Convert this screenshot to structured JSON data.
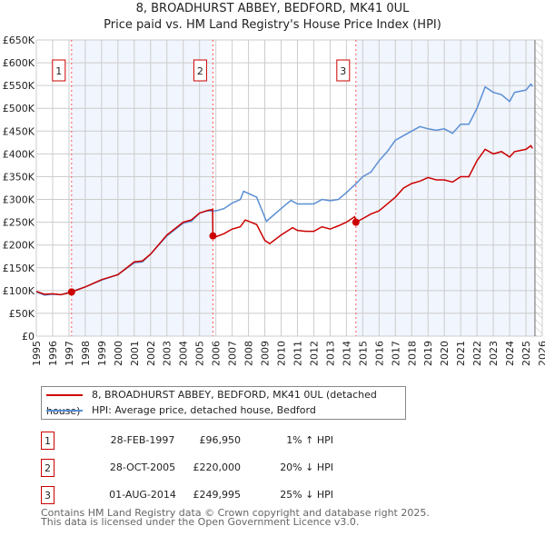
{
  "title": "8, BROADHURST ABBEY, BEDFORD, MK41 0UL",
  "subtitle": "Price paid vs. HM Land Registry's House Price Index (HPI)",
  "chart_data": {
    "type": "line",
    "title": "8, BROADHURST ABBEY, BEDFORD, MK41 0UL",
    "xlim": [
      1995,
      2026
    ],
    "ylim": [
      0,
      650000
    ],
    "xticks": [
      "1995",
      "1996",
      "1997",
      "1998",
      "1999",
      "2000",
      "2001",
      "2002",
      "2003",
      "2004",
      "2005",
      "2006",
      "2007",
      "2008",
      "2009",
      "2010",
      "2011",
      "2012",
      "2013",
      "2014",
      "2015",
      "2016",
      "2017",
      "2018",
      "2019",
      "2020",
      "2021",
      "2022",
      "2023",
      "2024",
      "2025",
      "2026"
    ],
    "yticks": [
      "£0",
      "£50K",
      "£100K",
      "£150K",
      "£200K",
      "£250K",
      "£300K",
      "£350K",
      "£400K",
      "£450K",
      "£500K",
      "£550K",
      "£600K",
      "£650K"
    ],
    "grid": true,
    "series": [
      {
        "name": "8, BROADHURST ABBEY, BEDFORD, MK41 0UL (detached house)",
        "color": "#cc0000",
        "x": [
          1995,
          1995.5,
          1996,
          1996.5,
          1997,
          1997.16,
          1998,
          1999,
          2000,
          2001,
          2001.5,
          2002,
          2003,
          2004,
          2004.5,
          2005,
          2005.5,
          2005.8,
          2005.82,
          2006,
          2006.5,
          2007,
          2007.5,
          2007.8,
          2008.5,
          2009,
          2009.3,
          2010,
          2010.7,
          2011,
          2011.5,
          2012,
          2012.5,
          2013,
          2013.5,
          2014,
          2014.5,
          2014.58,
          2015,
          2015.5,
          2016,
          2016.5,
          2017,
          2017.5,
          2018,
          2018.5,
          2019,
          2019.5,
          2020,
          2020.5,
          2021,
          2021.5,
          2022,
          2022.5,
          2023,
          2023.5,
          2024,
          2024.3,
          2025,
          2025.3,
          2025.4
        ],
        "y": [
          98000,
          92000,
          93000,
          91000,
          95000,
          96950,
          108000,
          124000,
          135000,
          163000,
          165000,
          180000,
          222000,
          250000,
          255000,
          270000,
          276000,
          278000,
          220000,
          218000,
          225000,
          235000,
          240000,
          255000,
          245000,
          210000,
          203000,
          222000,
          238000,
          232000,
          230000,
          230000,
          240000,
          235000,
          242000,
          250000,
          262000,
          249995,
          258000,
          268000,
          275000,
          290000,
          305000,
          325000,
          335000,
          340000,
          348000,
          343000,
          343000,
          338000,
          350000,
          350000,
          385000,
          410000,
          400000,
          405000,
          393000,
          405000,
          410000,
          418000,
          412000
        ]
      },
      {
        "name": "HPI: Average price, detached house, Bedford",
        "color": "#5b8fd4",
        "x": [
          1995,
          1995.5,
          1996,
          1996.5,
          1997,
          1998,
          1999,
          2000,
          2001,
          2001.5,
          2002,
          2003,
          2004,
          2004.5,
          2005,
          2005.5,
          2006,
          2006.5,
          2007,
          2007.5,
          2007.7,
          2008.5,
          2009.1,
          2010,
          2010.6,
          2011,
          2011.5,
          2012,
          2012.5,
          2013,
          2013.5,
          2014,
          2014.6,
          2015,
          2015.5,
          2016,
          2016.5,
          2017,
          2017.5,
          2018,
          2018.5,
          2019,
          2019.5,
          2020,
          2020.5,
          2021,
          2021.5,
          2022,
          2022.5,
          2023,
          2023.5,
          2024,
          2024.3,
          2025,
          2025.3,
          2025.4
        ],
        "y": [
          97000,
          90000,
          92000,
          91000,
          96000,
          108000,
          123000,
          135000,
          161000,
          163000,
          180000,
          220000,
          248000,
          252000,
          270000,
          275000,
          275000,
          280000,
          292000,
          300000,
          318000,
          305000,
          252000,
          280000,
          298000,
          290000,
          290000,
          290000,
          300000,
          297000,
          300000,
          315000,
          335000,
          350000,
          360000,
          385000,
          405000,
          430000,
          440000,
          450000,
          460000,
          455000,
          452000,
          455000,
          445000,
          465000,
          465000,
          500000,
          547000,
          535000,
          530000,
          515000,
          535000,
          540000,
          553000,
          548000
        ]
      }
    ],
    "sales": [
      {
        "label": "1",
        "x": 1997.16,
        "price": 96950
      },
      {
        "label": "2",
        "x": 2005.82,
        "price": 220000
      },
      {
        "label": "3",
        "x": 2014.58,
        "price": 249995
      }
    ],
    "shaded": [
      [
        1997.16,
        2005.82
      ],
      [
        2014.58,
        2025.5
      ]
    ],
    "forecast_start": 2025.55,
    "legend_position": "below"
  },
  "transactions": [
    {
      "num": "1",
      "date": "28-FEB-1997",
      "price": "£96,950",
      "hpi": "1% ↑ HPI"
    },
    {
      "num": "2",
      "date": "28-OCT-2005",
      "price": "£220,000",
      "hpi": "20% ↓ HPI"
    },
    {
      "num": "3",
      "date": "01-AUG-2014",
      "price": "£249,995",
      "hpi": "25% ↓ HPI"
    }
  ],
  "footer": [
    "Contains HM Land Registry data © Crown copyright and database right 2025.",
    "This data is licensed under the Open Government Licence v3.0."
  ]
}
